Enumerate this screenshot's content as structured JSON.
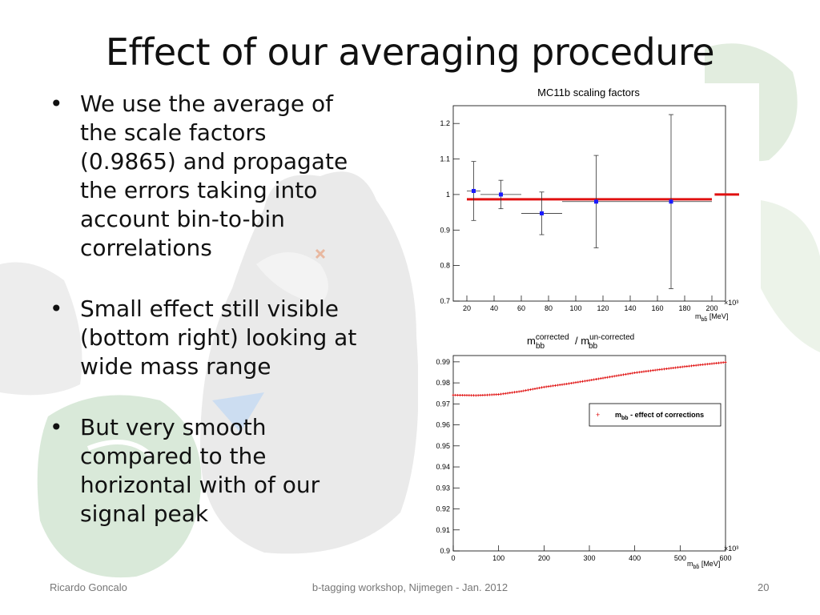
{
  "slide": {
    "title": "Effect of our averaging procedure",
    "bullets": [
      "We use the average of the scale factors (0.9865) and propagate the errors taking into account bin-to-bin correlations",
      "Small effect still visible (bottom right) looking at wide mass range",
      "But very smooth compared to the horizontal with of our signal peak"
    ],
    "bullet_lines": [
      [
        "We use the average of",
        "the scale factors",
        "(0.9865) and propagate",
        "the errors taking into",
        "account bin-to-bin",
        "correlations"
      ],
      [
        "Small effect still visible",
        "(bottom right) looking at",
        "wide mass range"
      ],
      [
        "But very smooth",
        "compared to the",
        "horizontal with of our",
        "signal peak"
      ]
    ]
  },
  "footer": {
    "author": "Ricardo Goncalo",
    "event": "b-tagging workshop, Nijmegen - Jan. 2012",
    "page": "20"
  },
  "chart_data": [
    {
      "type": "scatter",
      "title": "MC11b scaling factors",
      "xlabel": "m_{b̄b} [MeV]",
      "xlabel_main": "m",
      "xlabel_sub": "bb̄",
      "xlabel_unit": "[MeV]",
      "x_exponent": "×10³",
      "xlim": [
        10,
        210
      ],
      "ylim": [
        0.7,
        1.25
      ],
      "x_ticks": [
        20,
        40,
        60,
        80,
        100,
        120,
        140,
        160,
        180,
        200
      ],
      "x_tick_labels": [
        "20",
        "40",
        "60",
        "80",
        "100",
        "120",
        "140",
        "160",
        "180",
        "200"
      ],
      "y_ticks": [
        0.7,
        0.8,
        0.9,
        1.0,
        1.1,
        1.2
      ],
      "y_tick_labels": [
        "0.7",
        "0.8",
        "0.9",
        "1",
        "1.1",
        "1.2"
      ],
      "points": [
        {
          "x": 25,
          "y": 1.01,
          "xerr": 5,
          "yerr": 0.083
        },
        {
          "x": 45,
          "y": 1.0,
          "xerr": 15,
          "yerr": 0.04
        },
        {
          "x": 75,
          "y": 0.947,
          "xerr": 15,
          "yerr": 0.06
        },
        {
          "x": 115,
          "y": 0.98,
          "xerr": 25,
          "yerr": 0.13
        },
        {
          "x": 170,
          "y": 0.98,
          "xerr": 30,
          "yerr": 0.245
        }
      ],
      "average_line": {
        "value": 0.9865,
        "x_start": 20,
        "x_end": 200,
        "extension_start": 202,
        "extension_end": 220,
        "extension_value": 1.0
      },
      "colors": {
        "points": "#1a1aff",
        "average_line": "#e01010",
        "errors": "#333333"
      }
    },
    {
      "type": "scatter",
      "title_main": "m",
      "title_sub": "bb",
      "title_sup_1": "corrected",
      "title_sep": " / m",
      "title_sup_2": "un-corrected",
      "xlim": [
        0,
        600
      ],
      "ylim": [
        0.9,
        0.993
      ],
      "x_ticks": [
        0,
        100,
        200,
        300,
        400,
        500,
        600
      ],
      "x_tick_labels": [
        "0",
        "100",
        "200",
        "300",
        "400",
        "500",
        "600"
      ],
      "y_ticks": [
        0.9,
        0.91,
        0.92,
        0.93,
        0.94,
        0.95,
        0.96,
        0.97,
        0.98,
        0.99
      ],
      "y_tick_labels": [
        "0.9",
        "0.91",
        "0.92",
        "0.93",
        "0.94",
        "0.95",
        "0.96",
        "0.97",
        "0.98",
        "0.99"
      ],
      "x_exponent": "×10³",
      "xlabel_main": "m",
      "xlabel_sub": "bb̄",
      "xlabel_unit": "[MeV]",
      "series": [
        {
          "name": "m_{bb} - effect of corrections",
          "legend_main": "m",
          "legend_sub": "bb",
          "legend_rest": " - effect of corrections",
          "curve": [
            [
              0,
              0.9742
            ],
            [
              50,
              0.974
            ],
            [
              100,
              0.9745
            ],
            [
              150,
              0.976
            ],
            [
              200,
              0.978
            ],
            [
              250,
              0.9795
            ],
            [
              300,
              0.9812
            ],
            [
              350,
              0.983
            ],
            [
              400,
              0.9848
            ],
            [
              450,
              0.9862
            ],
            [
              500,
              0.9875
            ],
            [
              550,
              0.9887
            ],
            [
              600,
              0.9898
            ]
          ],
          "color": "#e01010"
        }
      ],
      "legend_position": "top-right"
    }
  ]
}
